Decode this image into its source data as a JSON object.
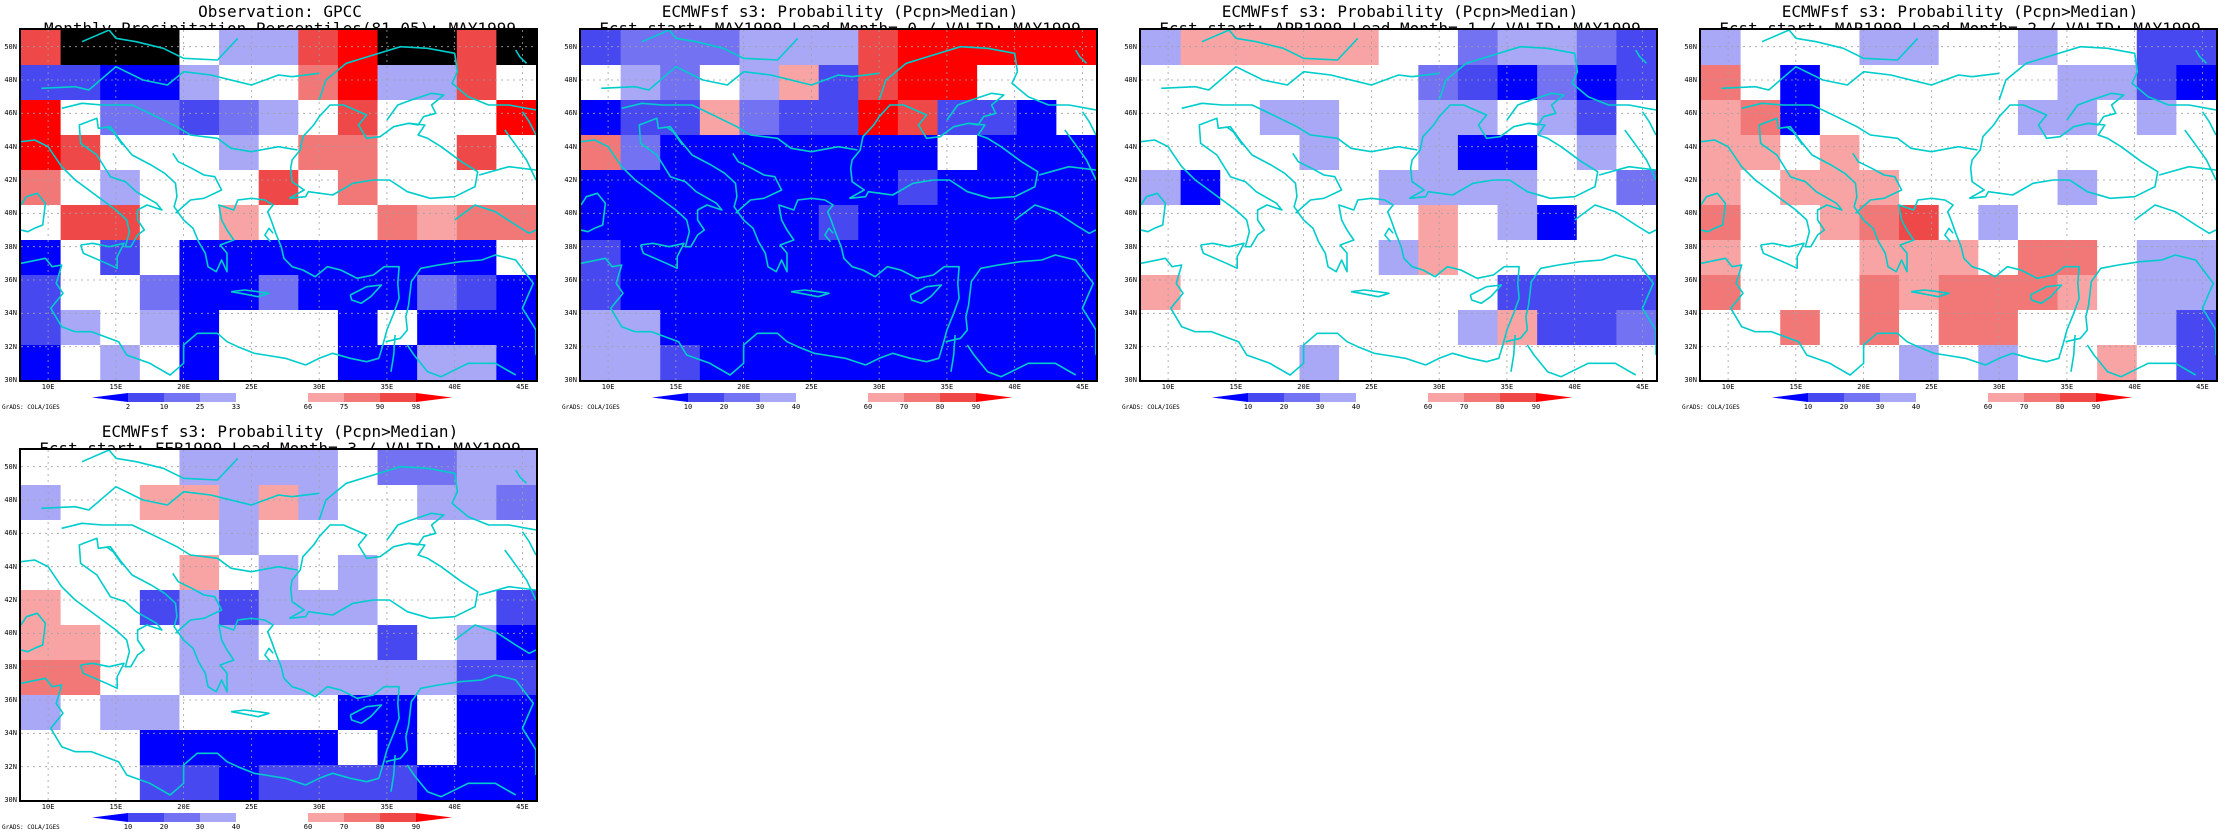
{
  "map": {
    "lon_range": [
      8,
      46
    ],
    "lat_range": [
      30,
      51
    ],
    "lat_ticks": [
      "30N",
      "32N",
      "34N",
      "36N",
      "38N",
      "40N",
      "42N",
      "44N",
      "46N",
      "48N",
      "50N"
    ],
    "lon_ticks": [
      "10E",
      "15E",
      "20E",
      "25E",
      "30E",
      "35E",
      "40E",
      "45E"
    ],
    "colors": {
      "deep_blue": "#0000ff",
      "mid_blue": "#4848f0",
      "medium_blue": "#7272f2",
      "light_blue": "#a8a8f6",
      "white": "#ffffff",
      "light_red": "#f8a4a4",
      "medium_red": "#f27878",
      "mid_red": "#ee4848",
      "deep_red": "#ff0000",
      "coastline": "#00cccc"
    }
  },
  "credit": "GrADS: COLA/IGES",
  "panels": [
    {
      "title_line1": "Observation: GPCC",
      "title_line2": "Monthly Precipitation Percentiles(81-05): MAY1999",
      "colorbar_labels": [
        "2",
        "10",
        "25",
        "33",
        "66",
        "75",
        "90",
        "98"
      ],
      "grid": [
        "7999433789979",
        "1100344683374",
        "8422123474448",
        "8744434664474",
        "6434447464444",
        "4774454446566",
        "0414000000004",
        "1442002000210",
        "1343044404000",
        "0434044400330"
      ]
    },
    {
      "title_line1": "ECMWFsf s3: Probability (Pcpn>Median)",
      "title_line2": "Fcst start: MAY1999  Lead Month= 0 / VALID: MAY1999",
      "colorbar_labels": [
        "10",
        "20",
        "30",
        "40",
        "60",
        "70",
        "80",
        "90"
      ],
      "grid": [
        "1222333788888",
        "4324351788444",
        "0115211871104",
        "6200000004000",
        "0000000010000",
        "0000001000000",
        "1000000000000",
        "1000000000000",
        "3300000000000",
        "3310000000000"
      ]
    },
    {
      "title_line1": "ECMWFsf s3: Probability (Pcpn>Median)",
      "title_line2": "Fcst start: APR1999  Lead Month= 1 / VALID: MAY1999",
      "colorbar_labels": [
        "10",
        "20",
        "30",
        "40",
        "60",
        "70",
        "80",
        "90"
      ],
      "grid": [
        "3555554423321",
        "4444444210201",
        "4443344334314",
        "4444344300434",
        "3044443333442",
        "4444444543044",
        "4444443544444",
        "5444444441111",
        "4444444435112",
        "4444344444444"
      ]
    },
    {
      "title_line1": "ECMWFsf s3: Probability (Pcpn>Median)",
      "title_line2": "Fcst start: MAR1999  Lead Month= 2 / VALID: MAY1999",
      "colorbar_labels": [
        "10",
        "20",
        "30",
        "40",
        "60",
        "70",
        "80",
        "90"
      ],
      "grid": [
        "3444334434411",
        "6404444443310",
        "5604444433434",
        "5545444444444",
        "5455544443444",
        "6445674344444",
        "5444555466433",
        "6444656665433",
        "4464646644431",
        "4444434344541"
      ]
    },
    {
      "title_line1": "ECMWFsf s3: Probability (Pcpn>Median)",
      "title_line2": "Fcst start: FEB1999  Lead Month= 3 / VALID: MAY1999",
      "colorbar_labels": [
        "10",
        "20",
        "30",
        "40",
        "60",
        "70",
        "80",
        "90"
      ],
      "grid": [
        "4444333342233",
        "3445535344332",
        "4444434444444",
        "4444543434444",
        "5441313334441",
        "5544334441430",
        "6644333333311",
        "3433444400400",
        "4440000040400",
        "4441101111000"
      ]
    }
  ]
}
